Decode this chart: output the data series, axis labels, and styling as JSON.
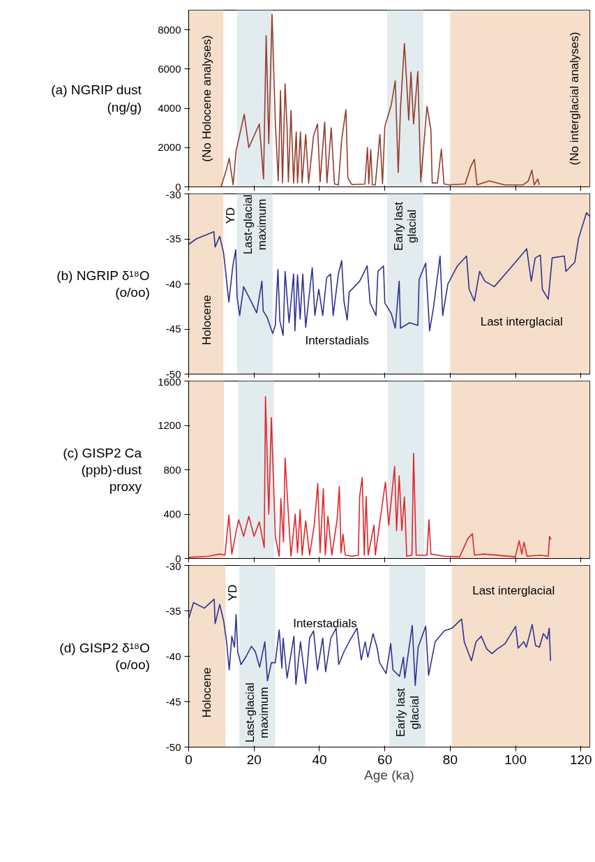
{
  "chart_data": [
    {
      "type": "line",
      "ylabel": "(a) NGRIP dust\n(ng/g)",
      "xlim": [
        0,
        122.7
      ],
      "ylim": [
        0,
        9000
      ],
      "xticks": [
        0,
        20,
        40,
        60,
        80,
        100,
        120
      ],
      "yticks": [
        0,
        2000,
        4000,
        6000,
        8000
      ],
      "tick_labels": "y",
      "x": [
        9.9,
        11.5,
        12.4,
        13.6,
        14.5,
        17,
        18.4,
        21.6,
        22.9,
        23.7,
        24.5,
        25.5,
        26.5,
        27.4,
        28.1,
        28.7,
        29.5,
        30.1,
        30.5,
        31.3,
        32.1,
        32.9,
        33.3,
        34.2,
        34.7,
        35.8,
        36.7,
        38.2,
        39.4,
        40.2,
        41.6,
        42.3,
        43.6,
        44.6,
        45.8,
        46.8,
        48.1,
        48.7,
        49.9,
        53.9,
        54.7,
        55.1,
        55.7,
        56.2,
        57.1,
        58.5,
        59.3,
        60,
        62,
        63.2,
        64.1,
        64.8,
        66,
        66.8,
        67.3,
        68,
        68.8,
        70.1,
        71,
        72.9,
        74.1,
        74.5,
        76.1,
        77.3,
        78.1,
        79.7,
        84.6,
        86.2,
        87.4,
        88.2,
        91.9,
        96.7,
        102.3,
        103.9,
        105,
        105.7,
        106.8,
        107.3
      ],
      "series": [
        {
          "color": "#953b2b",
          "values": [
            0,
            850,
            1460,
            100,
            1830,
            3700,
            2000,
            3200,
            400,
            7700,
            2200,
            8780,
            3300,
            300,
            4900,
            200,
            5250,
            3000,
            250,
            3900,
            200,
            2800,
            200,
            2800,
            200,
            2670,
            200,
            2600,
            3200,
            250,
            3300,
            200,
            3000,
            150,
            100,
            2400,
            3930,
            450,
            120,
            140,
            2000,
            150,
            1900,
            100,
            100,
            2670,
            150,
            3060,
            4200,
            5400,
            730,
            4000,
            7300,
            5000,
            3400,
            5840,
            3200,
            5880,
            250,
            4100,
            2900,
            200,
            200,
            1920,
            150,
            100,
            150,
            1000,
            1400,
            100,
            300,
            100,
            100,
            300,
            850,
            100,
            400,
            100
          ]
        }
      ],
      "bands": [
        {
          "axis": "x",
          "from": 0,
          "to": 10.6,
          "color": "#f5dfca"
        },
        {
          "axis": "x",
          "from": 14.8,
          "to": 25.7,
          "color": "#e2ebee"
        },
        {
          "axis": "x",
          "from": 60.7,
          "to": 71.8,
          "color": "#e2ebee"
        },
        {
          "axis": "x",
          "from": 80,
          "to": 122.7,
          "color": "#f5dfca"
        }
      ],
      "annotations": [
        "(No Holocene analyses)",
        "(No interglacial analyses)"
      ]
    },
    {
      "type": "line",
      "ylabel": "(b) NGRIP δ¹⁸O\n(o/oo)",
      "xlim": [
        0,
        122.7
      ],
      "ylim": [
        -50,
        -30
      ],
      "xticks": [
        0,
        20,
        40,
        60,
        80,
        100,
        120
      ],
      "yticks": [
        -30,
        -35,
        -40,
        -45,
        -50
      ],
      "tick_labels": "y",
      "x": [
        0,
        2.3,
        7.7,
        8.1,
        9.5,
        10.7,
        12.3,
        13.5,
        14.4,
        14.8,
        15.6,
        16.8,
        19.2,
        20.8,
        22.4,
        22.8,
        24,
        25.7,
        26.5,
        27.3,
        27.9,
        28.9,
        29.5,
        30.7,
        32.1,
        32.5,
        33.3,
        34.1,
        34.9,
        35.8,
        37.8,
        38.6,
        39.8,
        41,
        42.2,
        43.4,
        44.2,
        45.8,
        46.8,
        47.5,
        48.5,
        49.1,
        52.3,
        54.6,
        55.5,
        57.3,
        57.9,
        59.6,
        60,
        62,
        63.2,
        64.4,
        64.8,
        67.6,
        70.1,
        70.5,
        72.5,
        73.7,
        74.9,
        76.9,
        77.7,
        79.3,
        82.2,
        85,
        85.8,
        87.4,
        89,
        90.6,
        93.5,
        98.3,
        103.4,
        104.8,
        106,
        107.6,
        108.2,
        110,
        111.2,
        114.9,
        115.4,
        118.1,
        119.3,
        121.7,
        122.7
      ],
      "series": [
        {
          "color": "#2e3192",
          "values": [
            -35.6,
            -35,
            -34.2,
            -35.9,
            -34.7,
            -36.6,
            -42,
            -38,
            -36.2,
            -41.4,
            -43.5,
            -40.3,
            -42,
            -43.2,
            -39.7,
            -43,
            -43.7,
            -45.5,
            -44.6,
            -38.4,
            -44.1,
            -45.7,
            -38.6,
            -44.3,
            -38.9,
            -45.2,
            -39,
            -43.9,
            -38.9,
            -44.8,
            -38.2,
            -43.5,
            -40.6,
            -43.5,
            -39.3,
            -38.9,
            -43.5,
            -38.9,
            -37.4,
            -41.9,
            -44,
            -40.9,
            -39.7,
            -38,
            -42.1,
            -43.5,
            -38.6,
            -38,
            -42.1,
            -43.3,
            -44.9,
            -39.7,
            -44.9,
            -44.3,
            -44.6,
            -39.5,
            -37.7,
            -45.2,
            -42.6,
            -36.9,
            -43.5,
            -40,
            -38,
            -36.9,
            -40.6,
            -41.9,
            -38.6,
            -39.7,
            -40.3,
            -38.3,
            -36.1,
            -39.7,
            -37.1,
            -36.8,
            -40.6,
            -41.7,
            -37.1,
            -36.9,
            -38.6,
            -37.6,
            -34.9,
            -32.1,
            -32.5
          ]
        }
      ],
      "bands": [
        {
          "axis": "x",
          "from": 0,
          "to": 10.6,
          "color": "#f5dfca"
        },
        {
          "axis": "x",
          "from": 14.8,
          "to": 25.7,
          "color": "#e2ebee"
        },
        {
          "axis": "x",
          "from": 60.7,
          "to": 71.8,
          "color": "#e2ebee"
        },
        {
          "axis": "x",
          "from": 80,
          "to": 122.7,
          "color": "#f5dfca"
        }
      ],
      "annotations": [
        "Holocene",
        "YD",
        "Last-glacial\nmaximum",
        "Early last\nglacial",
        "Interstadials",
        "Last interglacial"
      ]
    },
    {
      "type": "line",
      "ylabel": "(c) GISP2 Ca\n(ppb)-dust\nproxy",
      "xlim": [
        0,
        122.7
      ],
      "ylim": [
        0,
        1600
      ],
      "xticks": [
        0,
        20,
        40,
        60,
        80,
        100,
        120
      ],
      "yticks": [
        0,
        400,
        800,
        1200,
        1600
      ],
      "tick_labels": "y",
      "x": [
        0,
        6.3,
        9.5,
        11.1,
        12.3,
        13.2,
        14.5,
        15.3,
        16.8,
        18.4,
        20,
        21.6,
        23.1,
        23.5,
        24.5,
        25.3,
        26.5,
        27.7,
        28.2,
        29,
        29.5,
        30.5,
        31.3,
        32.6,
        33.3,
        34.1,
        34.7,
        35.8,
        37,
        38.4,
        39.5,
        40.2,
        41.2,
        41.8,
        42.6,
        43.8,
        45.4,
        46.1,
        46.6,
        47.2,
        47.9,
        49.9,
        51.9,
        52.3,
        53.1,
        53.7,
        54.3,
        54.9,
        56.7,
        57.1,
        58.8,
        60.2,
        61.2,
        63,
        63.6,
        64.4,
        65.2,
        66,
        66.7,
        68.3,
        68.8,
        69.6,
        72.9,
        73.5,
        74.1,
        78.1,
        82.9,
        84.2,
        85.4,
        86.8,
        87.4,
        90.2,
        99.9,
        101.1,
        101.9,
        102.6,
        103.5,
        107.6,
        110,
        110.4,
        110.8
      ],
      "series": [
        {
          "color": "#e0252a",
          "values": [
            10,
            20,
            40,
            30,
            390,
            40,
            240,
            350,
            200,
            380,
            200,
            330,
            100,
            1460,
            400,
            1270,
            200,
            20,
            540,
            150,
            905,
            400,
            20,
            400,
            50,
            440,
            30,
            340,
            30,
            300,
            675,
            50,
            630,
            30,
            380,
            30,
            350,
            650,
            50,
            220,
            30,
            20,
            30,
            560,
            730,
            30,
            558,
            30,
            300,
            30,
            400,
            690,
            300,
            830,
            250,
            745,
            250,
            555,
            20,
            30,
            947,
            30,
            30,
            350,
            40,
            20,
            15,
            100,
            180,
            223,
            30,
            40,
            15,
            160,
            40,
            147,
            20,
            30,
            20,
            200,
            170
          ]
        }
      ],
      "bands": [
        {
          "axis": "x",
          "from": 0,
          "to": 10.8,
          "color": "#f5dfca"
        },
        {
          "axis": "x",
          "from": 15.2,
          "to": 26.1,
          "color": "#e2ebee"
        },
        {
          "axis": "x",
          "from": 61,
          "to": 72.1,
          "color": "#e2ebee"
        },
        {
          "axis": "x",
          "from": 80.3,
          "to": 122.7,
          "color": "#f5dfca"
        }
      ]
    },
    {
      "type": "line",
      "ylabel": "(d) GISP2 δ¹⁸O\n(o/oo)",
      "xlabel": "Age (ka)",
      "xlim": [
        0,
        122.7
      ],
      "ylim": [
        -50,
        -30
      ],
      "xticks": [
        0,
        20,
        40,
        60,
        80,
        100,
        120
      ],
      "yticks": [
        -30,
        -35,
        -40,
        -45,
        -50
      ],
      "x": [
        0,
        1.5,
        4.8,
        7.8,
        8.1,
        9.5,
        10.7,
        11.6,
        12.4,
        13.2,
        14,
        14.5,
        15,
        16,
        17.6,
        19.2,
        20.4,
        21.7,
        23.3,
        24.1,
        25.3,
        26.5,
        27.7,
        28.5,
        28.9,
        30.1,
        32.2,
        32.8,
        34.2,
        35.8,
        37,
        38.2,
        39.4,
        41,
        41.9,
        43.5,
        45.1,
        45.9,
        47.5,
        49.1,
        51.5,
        52.8,
        54,
        54.8,
        56.4,
        57.6,
        58.4,
        60.4,
        61.8,
        62.5,
        64.5,
        65.7,
        66.1,
        68.4,
        69.3,
        70.2,
        72.5,
        73.4,
        75.4,
        78.2,
        80.6,
        83.5,
        84.3,
        86.5,
        87.9,
        89.5,
        91.2,
        92.8,
        94.4,
        96.8,
        100,
        100.8,
        102.5,
        103.3,
        105.1,
        106.1,
        107.3,
        108.5,
        109.7,
        110.3,
        110.7
      ],
      "series": [
        {
          "color": "#2e3192",
          "values": [
            -35.8,
            -34.1,
            -34.7,
            -33.7,
            -36.4,
            -34.3,
            -36.1,
            -38.4,
            -41.5,
            -37.8,
            -39,
            -35.4,
            -39.5,
            -40.9,
            -40,
            -38.9,
            -39.5,
            -41.2,
            -38.4,
            -42.7,
            -40.7,
            -40.7,
            -37.1,
            -41.3,
            -38,
            -42.4,
            -37.8,
            -43.1,
            -38.4,
            -43,
            -38,
            -37.2,
            -41.5,
            -38,
            -41.7,
            -38,
            -36.9,
            -40.9,
            -39.5,
            -38.4,
            -36.9,
            -40.4,
            -38.4,
            -40.1,
            -37.5,
            -39,
            -40.7,
            -41.9,
            -38.6,
            -41.5,
            -42.2,
            -40.1,
            -42.4,
            -36.6,
            -43.2,
            -39,
            -36.7,
            -42.1,
            -38.4,
            -37.2,
            -36.9,
            -35.9,
            -38.4,
            -40.5,
            -38.4,
            -37.8,
            -39.2,
            -39.7,
            -39.2,
            -38.6,
            -36.7,
            -39.1,
            -38.4,
            -39,
            -36.5,
            -38.8,
            -39,
            -37.5,
            -38.1,
            -36.9,
            -40.5
          ]
        }
      ],
      "bands": [
        {
          "axis": "x",
          "from": 0,
          "to": 11.3,
          "color": "#f5dfca"
        },
        {
          "axis": "x",
          "from": 15.5,
          "to": 26.5,
          "color": "#e2ebee"
        },
        {
          "axis": "x",
          "from": 61.4,
          "to": 72.4,
          "color": "#e2ebee"
        },
        {
          "axis": "x",
          "from": 80.5,
          "to": 122.7,
          "color": "#f5dfca"
        }
      ],
      "annotations": [
        "Holocene",
        "YD",
        "Last-glacial\nmaximum",
        "Early last\nglacial",
        "Interstadials",
        "Last interglacial"
      ]
    }
  ]
}
